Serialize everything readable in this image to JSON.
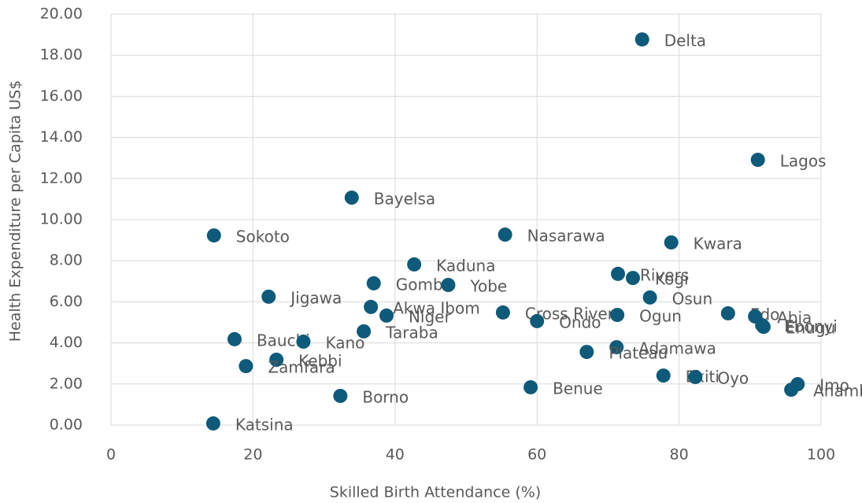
{
  "chart_data": {
    "type": "scatter",
    "x_label": "Skilled Birth Attendance (%)",
    "y_label": "Health Expenditure per Capita US$",
    "color": "#0e5a7a",
    "grid": true,
    "xlim": [
      0,
      100
    ],
    "xticks": [
      0,
      20,
      40,
      60,
      80,
      100
    ],
    "ylim": [
      0,
      20
    ],
    "yticks": [
      {
        "value": 0,
        "label": "0.00"
      },
      {
        "value": 2,
        "label": "2.00"
      },
      {
        "value": 4,
        "label": "4.00"
      },
      {
        "value": 6,
        "label": "6.00"
      },
      {
        "value": 8,
        "label": "8.00"
      },
      {
        "value": 10,
        "label": "10.00"
      },
      {
        "value": 12,
        "label": "12.00"
      },
      {
        "value": 14,
        "label": "14.00"
      },
      {
        "value": 16,
        "label": "16.00"
      },
      {
        "value": 18,
        "label": "18.00"
      },
      {
        "value": 20,
        "label": "20.00"
      }
    ],
    "labels": [
      "Delta",
      "Lagos",
      "Bayelsa",
      "Sokoto",
      "Nasarawa",
      "Kwara",
      "Kaduna",
      "Gombe",
      "Yobe",
      "Rivers",
      "Kogi",
      "Jigawa",
      "Osun",
      "Akwa Ibom",
      "Niger",
      "Cross River",
      "Ondo",
      "Ogun",
      "Edo",
      "Abia",
      "Ebonyi",
      "Enugu",
      "Taraba",
      "Bauchi",
      "Kano",
      "Adamawa",
      "Plateau",
      "Kebbi",
      "Zamfara",
      "Ekiti",
      "Oyo",
      "Imo",
      "Anambra",
      "Benue",
      "Borno",
      "Katsina"
    ],
    "x": [
      74.8,
      91.1,
      33.9,
      14.5,
      55.5,
      78.9,
      42.7,
      37.0,
      47.5,
      71.4,
      73.5,
      22.2,
      75.9,
      36.6,
      38.8,
      55.2,
      60.0,
      71.3,
      86.9,
      90.7,
      91.7,
      91.9,
      35.6,
      17.4,
      27.1,
      71.2,
      67.0,
      23.3,
      19.0,
      77.8,
      82.3,
      96.7,
      95.8,
      59.1,
      32.3,
      14.4
    ],
    "values": [
      18.77,
      12.91,
      11.07,
      9.23,
      9.27,
      8.89,
      7.82,
      6.9,
      6.82,
      7.36,
      7.16,
      6.25,
      6.21,
      5.75,
      5.33,
      5.48,
      5.06,
      5.36,
      5.44,
      5.29,
      4.86,
      4.78,
      4.56,
      4.18,
      4.06,
      3.79,
      3.56,
      3.18,
      2.87,
      2.41,
      2.34,
      1.99,
      1.72,
      1.84,
      1.42,
      0.08
    ]
  }
}
